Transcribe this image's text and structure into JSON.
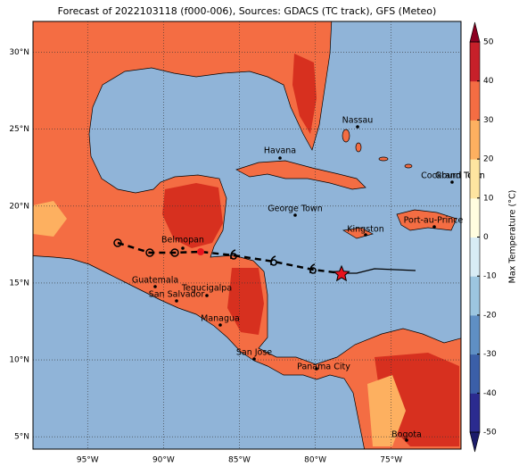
{
  "title": "Forecast of 2022103118 (f000-006), Sources: GDACS (TC track), GFS (Meteo)",
  "map": {
    "xlim": [
      -98.6,
      -70.4
    ],
    "ylim": [
      4.2,
      32
    ],
    "xticks": [
      {
        "value": -95,
        "label": "95°W"
      },
      {
        "value": -90,
        "label": "90°W"
      },
      {
        "value": -85,
        "label": "85°W"
      },
      {
        "value": -80,
        "label": "80°W"
      },
      {
        "value": -75,
        "label": "75°W"
      }
    ],
    "yticks": [
      {
        "value": 5,
        "label": "5°N"
      },
      {
        "value": 10,
        "label": "10°N"
      },
      {
        "value": 15,
        "label": "15°N"
      },
      {
        "value": 20,
        "label": "20°N"
      },
      {
        "value": 25,
        "label": "25°N"
      },
      {
        "value": 30,
        "label": "30°N"
      }
    ],
    "grid": true
  },
  "colorbar": {
    "label": "Max Temperature (°C)",
    "lim": [
      -50,
      50
    ],
    "ticks": [
      -50,
      -40,
      -30,
      -20,
      -10,
      0,
      10,
      20,
      30,
      40,
      50
    ],
    "colors": [
      "#2b2b8f",
      "#3b5fa8",
      "#5f8fc4",
      "#9cc6e0",
      "#d8ecf5",
      "#fffde0",
      "#fee5a0",
      "#fdb060",
      "#f46d43",
      "#c7202a"
    ],
    "under": "#1c1c6a",
    "over": "#8b0021"
  },
  "cities": [
    "Nassau",
    "Havana",
    "George Town",
    "Kingston",
    "Port-au-Prince",
    "Cockburn Town",
    "Grand Turk",
    "Belmopan",
    "Guatemala",
    "Tegucigalpa",
    "San Salvador",
    "Managua",
    "San Jose",
    "Panama City",
    "Bogota"
  ]
}
